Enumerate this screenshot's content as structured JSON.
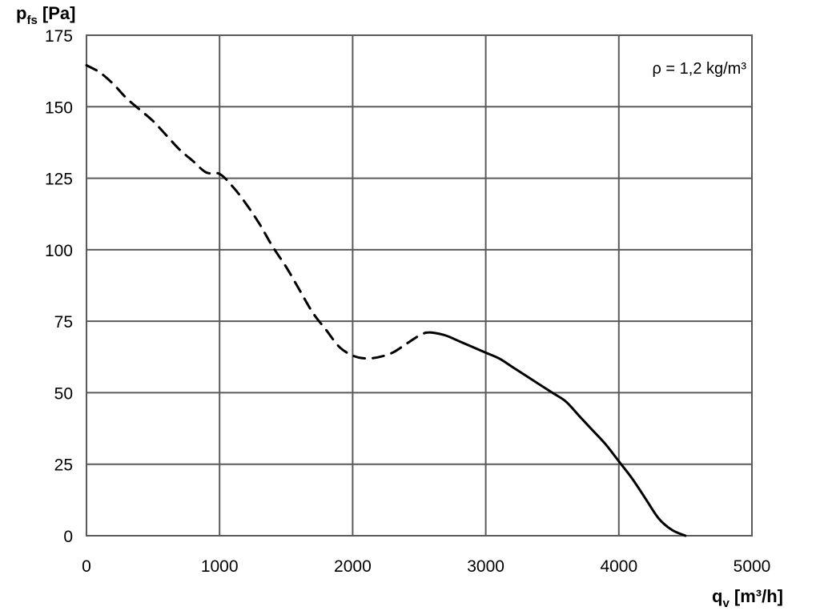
{
  "chart_data": {
    "type": "line",
    "xlabel": {
      "main": "q",
      "sub": "v",
      "unit": " [m³/h]"
    },
    "ylabel": {
      "main": "p",
      "sub": "fs",
      "unit": " [Pa]"
    },
    "xlim": [
      0,
      5000
    ],
    "ylim": [
      0,
      175
    ],
    "xticks": [
      "0",
      "1000",
      "2000",
      "3000",
      "4000",
      "5000"
    ],
    "yticks": [
      "0",
      "25",
      "50",
      "75",
      "100",
      "125",
      "150",
      "175"
    ],
    "xtick_values": [
      0,
      1000,
      2000,
      3000,
      4000,
      5000
    ],
    "ytick_values": [
      0,
      25,
      50,
      75,
      100,
      125,
      150,
      175
    ],
    "grid": true,
    "annotation": "ρ = 1,2 kg/m³",
    "series": [
      {
        "style": "dashed",
        "x": [
          0,
          100,
          200,
          300,
          400,
          500,
          600,
          700,
          800,
          900,
          1000,
          1100,
          1200,
          1300,
          1400,
          1500,
          1600,
          1700,
          1800,
          1900,
          2000,
          2100,
          2200,
          2300,
          2400,
          2500,
          2550
        ],
        "y": [
          164.5,
          162,
          158,
          153,
          149,
          145,
          140,
          135,
          131,
          127,
          126.5,
          122,
          116,
          109,
          101,
          94,
          86,
          78,
          72,
          66,
          63,
          62,
          62.5,
          64,
          67,
          70,
          71
        ]
      },
      {
        "style": "solid",
        "x": [
          2550,
          2600,
          2700,
          2800,
          2900,
          3000,
          3100,
          3200,
          3300,
          3400,
          3500,
          3600,
          3700,
          3800,
          3900,
          4000,
          4100,
          4200,
          4300,
          4400,
          4500
        ],
        "y": [
          71,
          71,
          70,
          68,
          66,
          64,
          62,
          59,
          56,
          53,
          50,
          47,
          42,
          37,
          32,
          26,
          20,
          13,
          6,
          2,
          0
        ]
      }
    ]
  }
}
